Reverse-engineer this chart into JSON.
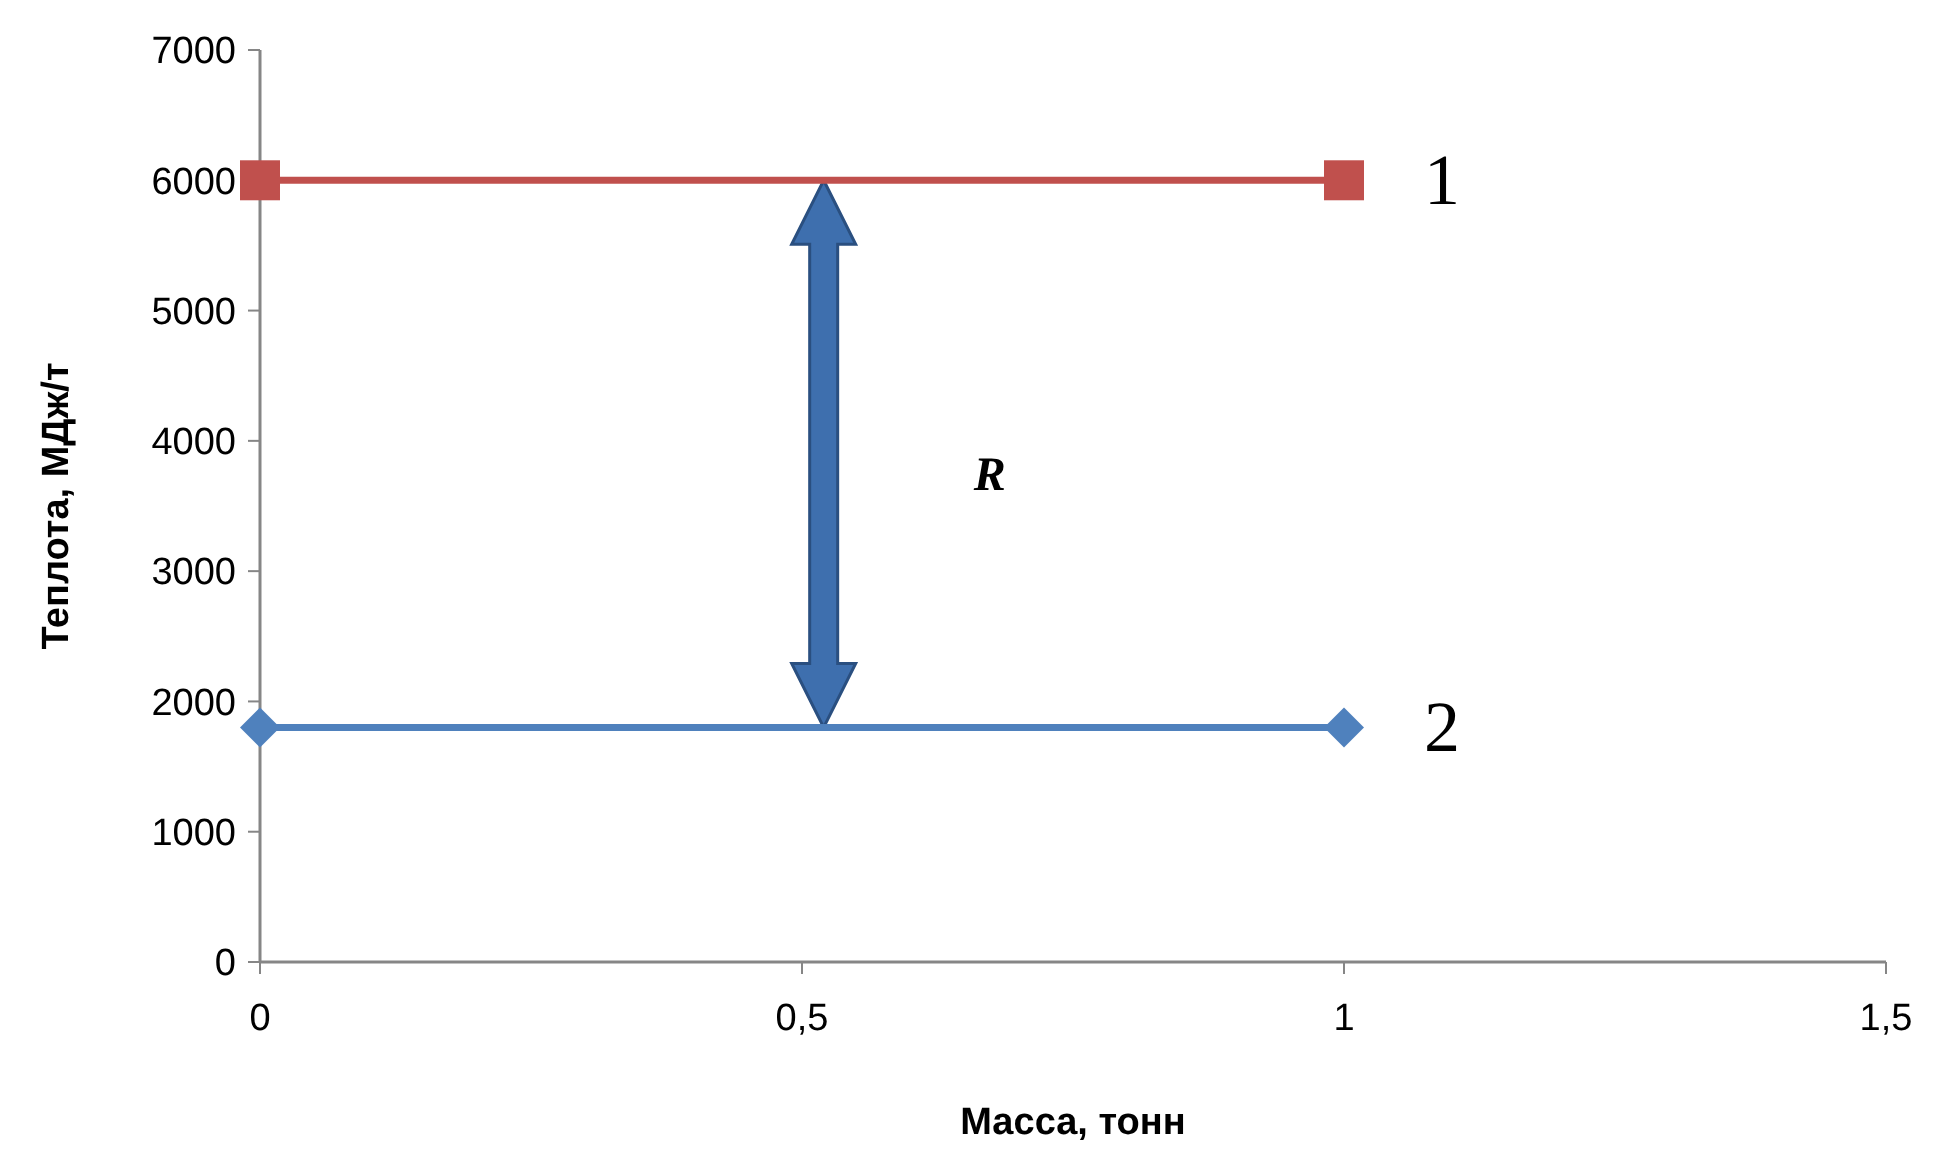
{
  "chart_data": {
    "type": "line",
    "xlabel": "Масса, тонн",
    "ylabel": "Теплота, МДж/т",
    "x": [
      0,
      1
    ],
    "series": [
      {
        "name": "1",
        "color": "#c0504d",
        "values": [
          6000,
          6000
        ],
        "marker": "square"
      },
      {
        "name": "2",
        "color": "#4f81bd",
        "values": [
          1800,
          1800
        ],
        "marker": "diamond"
      }
    ],
    "xlim": [
      0,
      1.5
    ],
    "xticks": [
      0,
      {
        "value": 0.5,
        "label": "0,5"
      },
      1,
      {
        "value": 1.5,
        "label": "1,5"
      }
    ],
    "ylim": [
      0,
      7000
    ],
    "yticks": [
      0,
      1000,
      2000,
      3000,
      4000,
      5000,
      6000,
      7000
    ],
    "annotations": [
      "R"
    ],
    "grid": false,
    "line_style": "solid"
  }
}
